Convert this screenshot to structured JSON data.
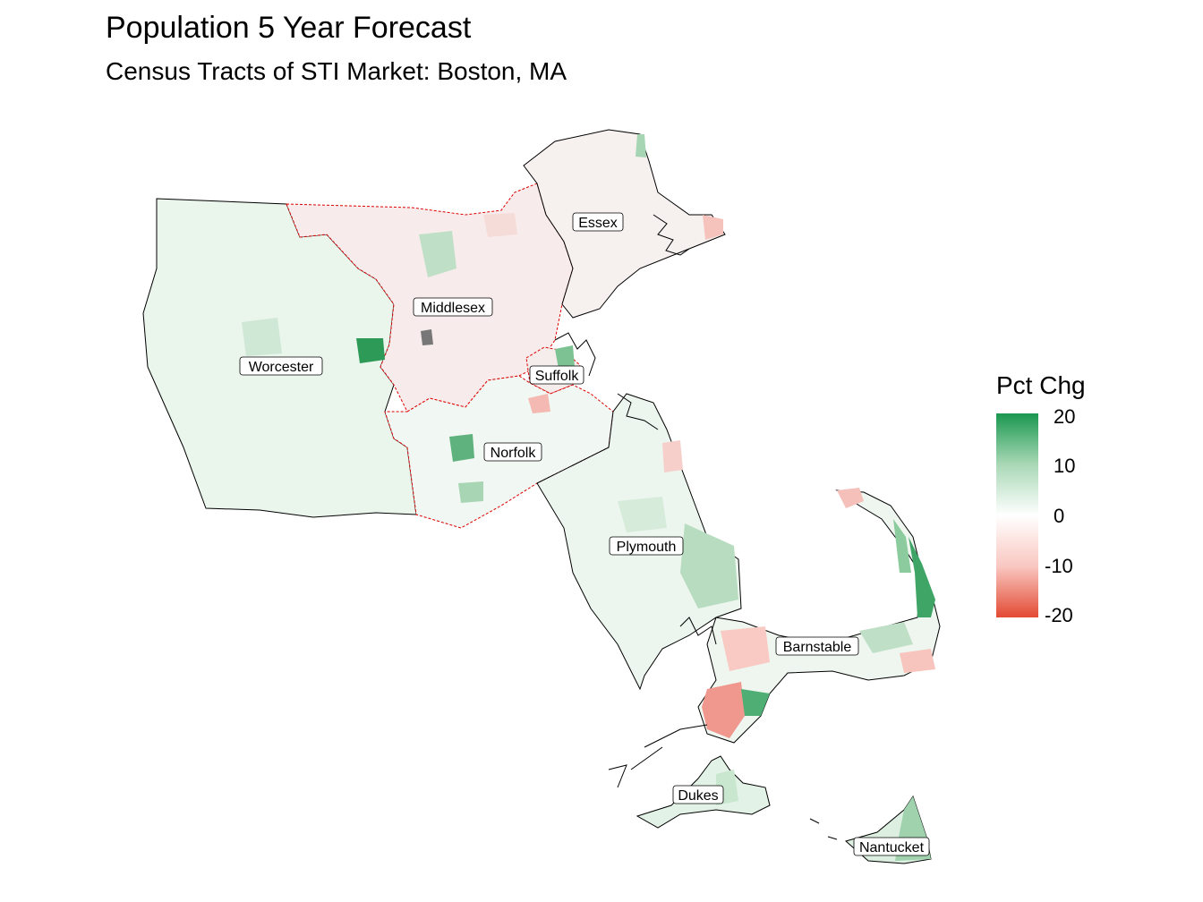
{
  "title": "Population 5 Year Forecast",
  "subtitle": "Census Tracts of STI Market: Boston, MA",
  "legend": {
    "title": "Pct Chg",
    "ticks": [
      "20",
      "10",
      "0",
      "-10",
      "-20"
    ],
    "tick_values": [
      20,
      10,
      0,
      -10,
      -20
    ],
    "range": [
      -20,
      20
    ],
    "colors": {
      "high": "#1a9850",
      "mid": "#ffffff",
      "low": "#e34a33"
    }
  },
  "counties": {
    "essex": "Essex",
    "middlesex": "Middlesex",
    "worcester": "Worcester",
    "suffolk": "Suffolk",
    "norfolk": "Norfolk",
    "plymouth": "Plymouth",
    "barnstable": "Barnstable",
    "dukes": "Dukes",
    "nantucket": "Nantucket"
  }
}
